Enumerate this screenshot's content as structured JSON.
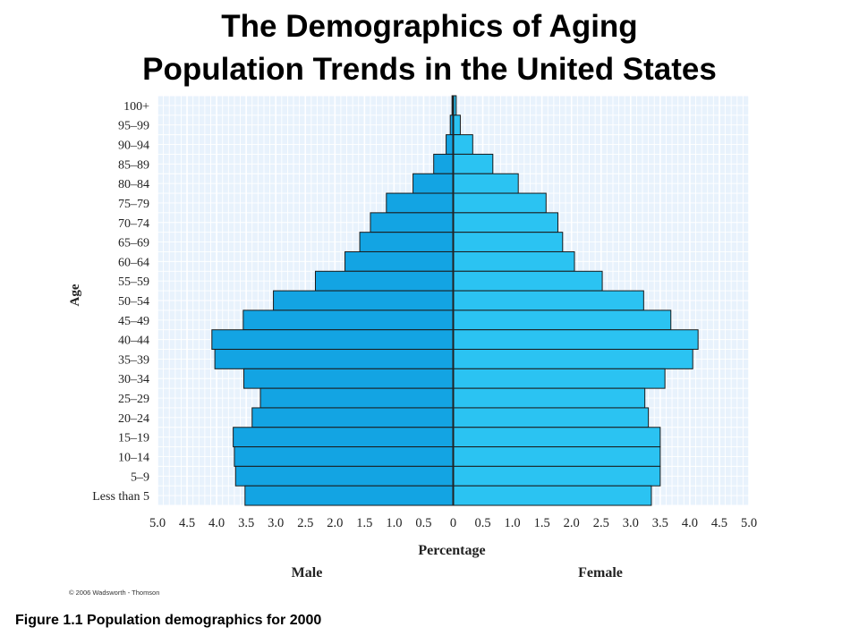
{
  "chart_data": {
    "type": "bar",
    "orientation": "horizontal-population-pyramid",
    "title": "The Demographics of Aging",
    "subtitle": "Population Trends in the United States",
    "ylabel": "Age",
    "xlabel": "Percentage",
    "left_label": "Male",
    "right_label": "Female",
    "xlim": [
      -5.0,
      5.0
    ],
    "x_ticks": [
      "5.0",
      "4.5",
      "4.0",
      "3.5",
      "3.0",
      "2.5",
      "2.0",
      "1.5",
      "1.0",
      "0.5",
      "0",
      "0.5",
      "1.0",
      "1.5",
      "2.0",
      "2.5",
      "3.0",
      "3.5",
      "4.0",
      "4.5",
      "5.0"
    ],
    "categories": [
      "100+",
      "95–99",
      "90–94",
      "85–89",
      "80–84",
      "75–79",
      "70–74",
      "65–69",
      "60–64",
      "55–59",
      "50–54",
      "45–49",
      "40–44",
      "35–39",
      "30–34",
      "25–29",
      "20–24",
      "15–19",
      "10–14",
      "5–9",
      "Less than 5"
    ],
    "series": [
      {
        "name": "Male",
        "color": "#13a4e3",
        "values": [
          0.02,
          0.05,
          0.12,
          0.33,
          0.68,
          1.13,
          1.4,
          1.58,
          1.83,
          2.33,
          3.04,
          3.55,
          4.08,
          4.03,
          3.54,
          3.26,
          3.4,
          3.72,
          3.7,
          3.68,
          3.52
        ]
      },
      {
        "name": "Female",
        "color": "#2bc3f2",
        "values": [
          0.05,
          0.12,
          0.33,
          0.67,
          1.1,
          1.57,
          1.77,
          1.85,
          2.05,
          2.52,
          3.22,
          3.68,
          4.14,
          4.05,
          3.58,
          3.24,
          3.3,
          3.5,
          3.5,
          3.5,
          3.35
        ]
      }
    ]
  },
  "caption": "Figure 1.1 Population demographics for 2000",
  "copyright": "© 2006 Wadsworth - Thomson",
  "colors": {
    "plot_bg": "#e8f2fc",
    "grid_line": "#ffffff",
    "bar_edge": "#1a1a1a",
    "axis_line": "#222222"
  }
}
